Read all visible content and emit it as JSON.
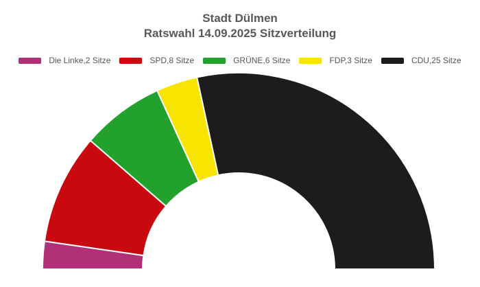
{
  "chart_data": {
    "type": "pie",
    "subtype": "half-donut",
    "title": "Stadt Dülmen",
    "subtitle": "Ratswahl 14.09.2025 Sitzverteilung",
    "total_seats": 44,
    "start_angle_deg": 180,
    "end_angle_deg": 0,
    "inner_radius_ratio": 0.49,
    "legend_position": "top",
    "grid": false,
    "series": [
      {
        "name": "Die Linke",
        "seats": 2,
        "color": "#b23077",
        "legend_label": "Die Linke,2 Sitze"
      },
      {
        "name": "SPD",
        "seats": 8,
        "color": "#c8090f",
        "legend_label": "SPD,8 Sitze"
      },
      {
        "name": "GRÜNE",
        "seats": 6,
        "color": "#23a12d",
        "legend_label": "GRÜNE,6 Sitze"
      },
      {
        "name": "FDP",
        "seats": 3,
        "color": "#f7e400",
        "legend_label": "FDP,3 Sitze"
      },
      {
        "name": "CDU",
        "seats": 25,
        "color": "#1d1b1c",
        "legend_label": "CDU,25 Sitze"
      }
    ],
    "segment_border_color": "#ffffff",
    "title_color": "#58585a",
    "legend_text_color": "#555555"
  }
}
